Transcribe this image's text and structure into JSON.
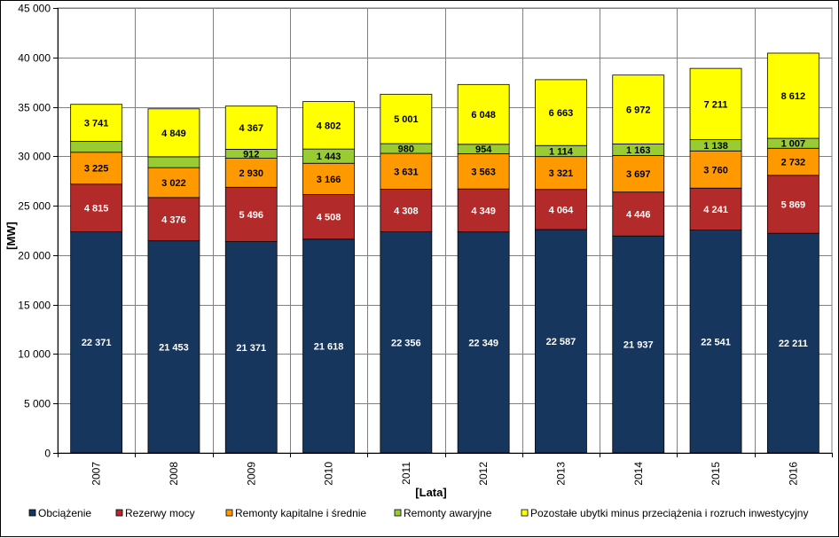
{
  "chart_data": {
    "type": "bar",
    "stacked": true,
    "categories": [
      "2007",
      "2008",
      "2009",
      "2010",
      "2011",
      "2012",
      "2013",
      "2014",
      "2015",
      "2016"
    ],
    "series": [
      {
        "name": "Obciążenie",
        "color": "#17365D",
        "label_color": "#FFFFFF",
        "values": [
          22371,
          21453,
          21371,
          21618,
          22356,
          22349,
          22587,
          21937,
          22541,
          22211
        ],
        "labels": [
          "22 371",
          "21 453",
          "21 371",
          "21 618",
          "22 356",
          "22 349",
          "22 587",
          "21 937",
          "22 541",
          "22 211"
        ]
      },
      {
        "name": "Rezerwy mocy",
        "color": "#B22A2A",
        "label_color": "#FFFFFF",
        "values": [
          4815,
          4376,
          5496,
          4508,
          4308,
          4349,
          4064,
          4446,
          4241,
          5869
        ],
        "labels": [
          "4 815",
          "4 376",
          "5 496",
          "4 508",
          "4 308",
          "4 349",
          "4 064",
          "4 446",
          "4 241",
          "5 869"
        ]
      },
      {
        "name": "Remonty kapitalne i średnie",
        "color": "#FF9900",
        "label_color": "#000000",
        "values": [
          3225,
          3022,
          2930,
          3166,
          3631,
          3563,
          3321,
          3697,
          3760,
          2732
        ],
        "labels": [
          "3 225",
          "3 022",
          "2 930",
          "3 166",
          "3 631",
          "3 563",
          "3 321",
          "3 697",
          "3 760",
          "2 732"
        ]
      },
      {
        "name": "Remonty awaryjne",
        "color": "#99CC33",
        "label_color": "#000000",
        "values": [
          1100,
          1100,
          912,
          1443,
          980,
          954,
          1114,
          1163,
          1138,
          1007
        ],
        "labels": [
          "",
          "",
          "912",
          "1 443",
          "980",
          "954",
          "1 114",
          "1 163",
          "1 138",
          "1 007"
        ]
      },
      {
        "name": "Pozostałe ubytki minus przeciążenia i rozruch inwestycyjny",
        "color": "#FFFF00",
        "label_color": "#000000",
        "values": [
          3741,
          4849,
          4367,
          4802,
          5001,
          6048,
          6663,
          6972,
          7211,
          8612
        ],
        "labels": [
          "3 741",
          "4 849",
          "4 367",
          "4 802",
          "5 001",
          "6 048",
          "6 663",
          "6 972",
          "7 211",
          "8 612"
        ]
      }
    ],
    "ylim": [
      0,
      45000
    ],
    "yticks": [
      0,
      5000,
      10000,
      15000,
      20000,
      25000,
      30000,
      35000,
      40000,
      45000
    ],
    "ytick_labels": [
      "0",
      "5 000",
      "10 000",
      "15 000",
      "20 000",
      "25 000",
      "30 000",
      "35 000",
      "40 000",
      "45 000"
    ],
    "xlabel": "[Lata]",
    "ylabel": "[MW]",
    "grid": true,
    "legend_position": "bottom"
  }
}
